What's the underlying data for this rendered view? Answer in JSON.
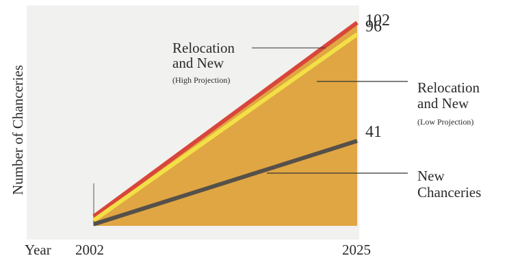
{
  "chart_data": {
    "type": "area",
    "title": "",
    "xlabel": "Year",
    "ylabel": "Number of Chanceries",
    "x_ticks": [
      "2002",
      "2025"
    ],
    "x": [
      2002,
      2025
    ],
    "ylim": [
      0,
      110
    ],
    "series": [
      {
        "key": "high",
        "name_lines": [
          "Relocation",
          "and New",
          "(High Projection)"
        ],
        "values": [
          2,
          102
        ],
        "end_label": "102",
        "color": "#d9463a"
      },
      {
        "key": "low",
        "name_lines": [
          "Relocation",
          "and New",
          "(Low Projection)"
        ],
        "values": [
          0,
          96
        ],
        "end_label": "96",
        "color": "#f3e047"
      },
      {
        "key": "new",
        "name_lines": [
          "New",
          "Chanceries"
        ],
        "values": [
          -2,
          41
        ],
        "end_label": "41",
        "color": "#555049"
      }
    ],
    "fill_color": "#e0a643",
    "grid": false,
    "legend": "annotations"
  }
}
